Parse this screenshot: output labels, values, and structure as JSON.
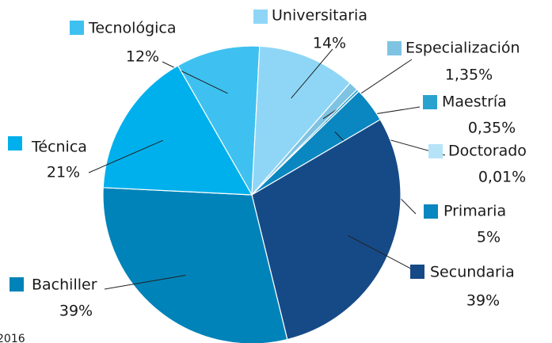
{
  "chart_data": {
    "type": "pie",
    "categories": [
      "Tecnológica",
      "Universitaria",
      "Especialización",
      "Maestría",
      "Doctorado",
      "Primaria",
      "Secundaria",
      "Bachiller",
      "Técnica"
    ],
    "values": [
      12,
      14,
      1.35,
      0.35,
      0.01,
      5,
      39,
      39,
      21
    ],
    "value_labels": [
      "12%",
      "14%",
      "1,35%",
      "0,35%",
      "0,01%",
      "5%",
      "39%",
      "39%",
      "21%"
    ],
    "colors": [
      "#3ec1f0",
      "#8fd6f6",
      "#7fc3e3",
      "#2aa2cf",
      "#b5e4f9",
      "#0a87c0",
      "#164a87",
      "#0083b8",
      "#00b0ec"
    ],
    "source": "2016"
  }
}
